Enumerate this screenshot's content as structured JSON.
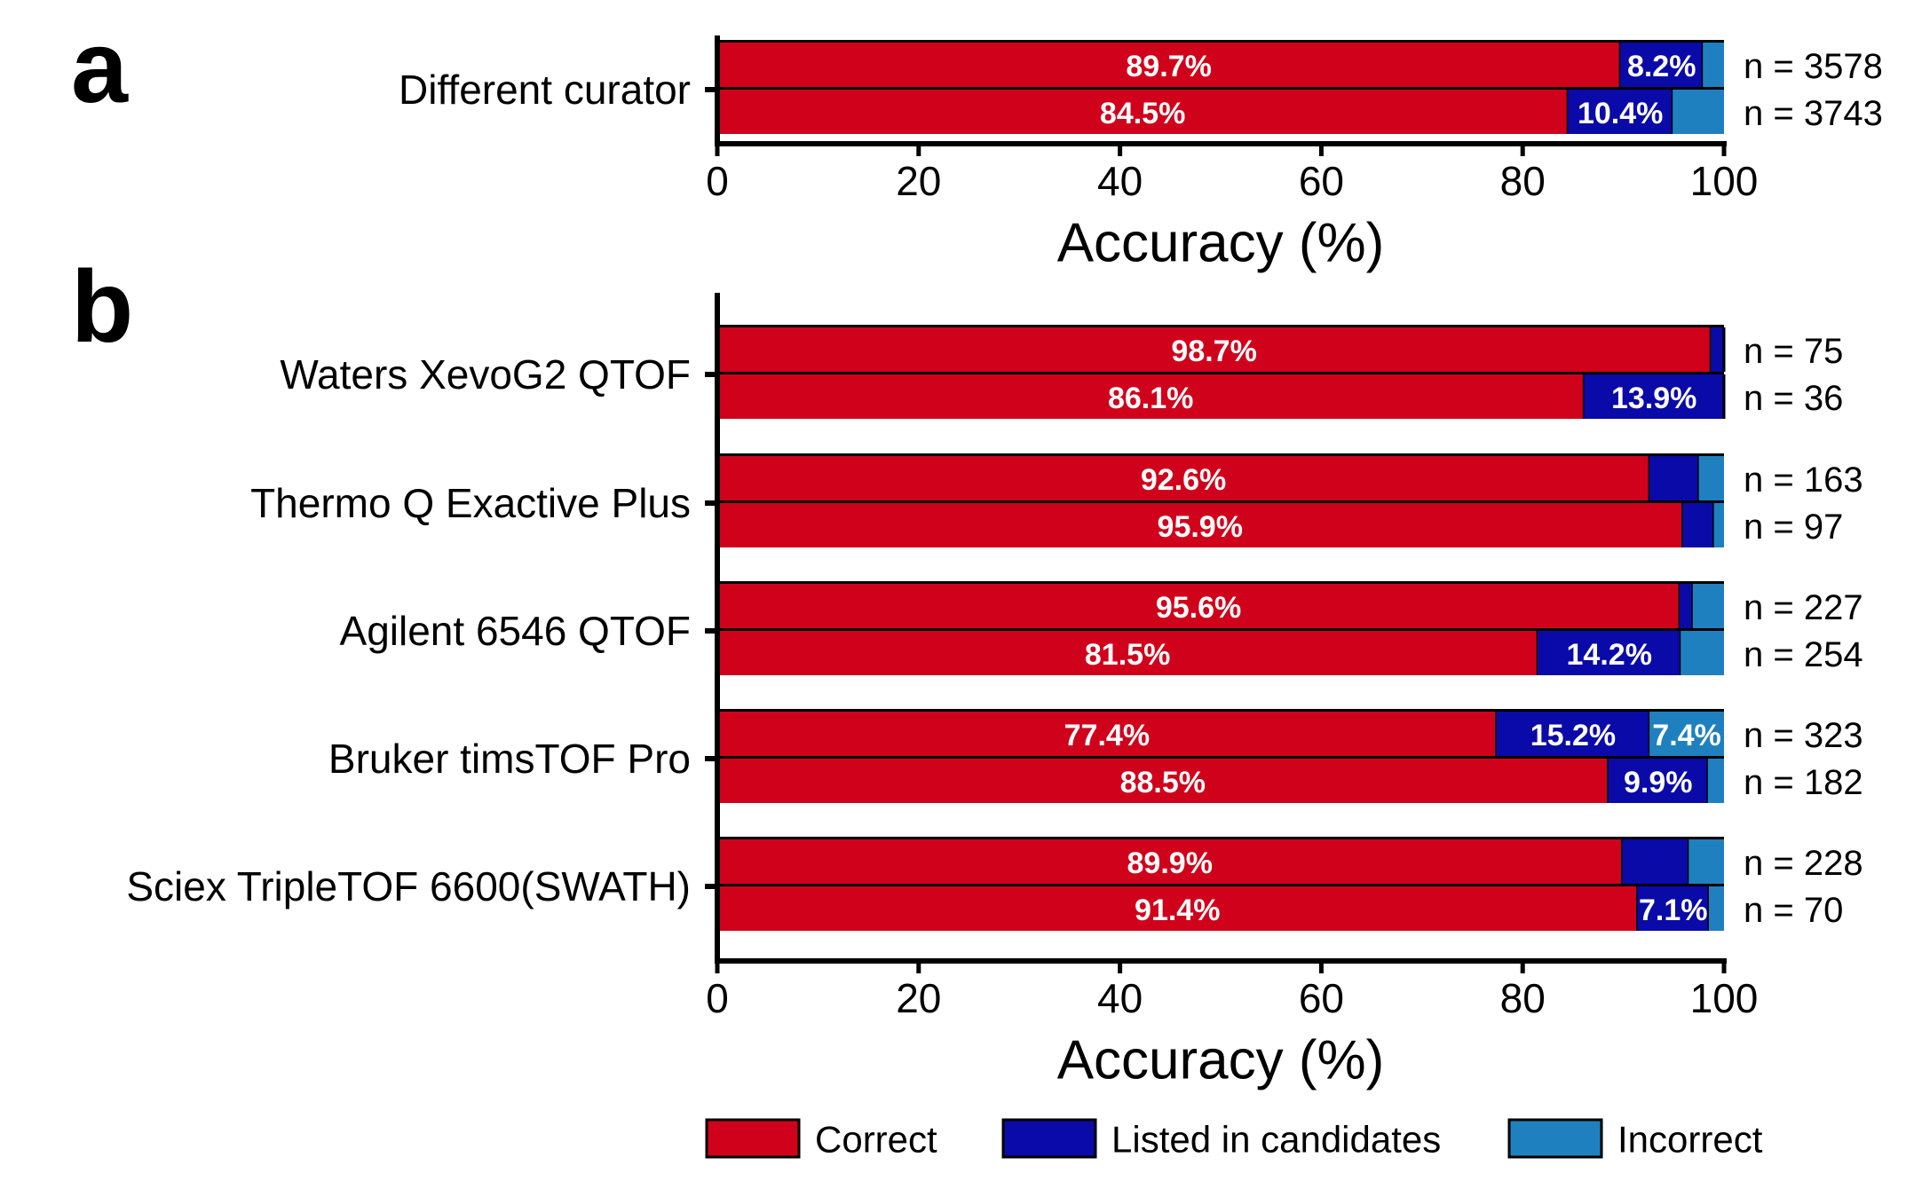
{
  "colors": {
    "correct": "#d0021b",
    "listed": "#0a0aa8",
    "incorrect": "#1f80bf",
    "axis": "#000000"
  },
  "chart_data": [
    {
      "panel": "a",
      "type": "bar",
      "orientation": "horizontal",
      "stacked": true,
      "xlabel": "Accuracy (%)",
      "xlim": [
        0,
        100
      ],
      "xticks": [
        "0",
        "20",
        "40",
        "60",
        "80",
        "100"
      ],
      "groups": [
        {
          "name": "Different curator",
          "bars": [
            {
              "correct": 89.7,
              "listed": 8.2,
              "incorrect": 2.1,
              "labels": {
                "correct": "89.7%",
                "listed": "8.2%",
                "incorrect": ""
              },
              "n": "n = 3578"
            },
            {
              "correct": 84.5,
              "listed": 10.4,
              "incorrect": 5.1,
              "labels": {
                "correct": "84.5%",
                "listed": "10.4%",
                "incorrect": ""
              },
              "n": "n = 3743"
            }
          ]
        }
      ]
    },
    {
      "panel": "b",
      "type": "bar",
      "orientation": "horizontal",
      "stacked": true,
      "xlabel": "Accuracy (%)",
      "xlim": [
        0,
        100
      ],
      "xticks": [
        "0",
        "20",
        "40",
        "60",
        "80",
        "100"
      ],
      "groups": [
        {
          "name": "Waters XevoG2 QTOF",
          "bars": [
            {
              "correct": 98.7,
              "listed": 1.3,
              "incorrect": 0.0,
              "labels": {
                "correct": "98.7%",
                "listed": "",
                "incorrect": ""
              },
              "n": "n = 75"
            },
            {
              "correct": 86.1,
              "listed": 13.9,
              "incorrect": 0.0,
              "labels": {
                "correct": "86.1%",
                "listed": "13.9%",
                "incorrect": ""
              },
              "n": "n = 36"
            }
          ]
        },
        {
          "name": "Thermo Q Exactive Plus",
          "bars": [
            {
              "correct": 92.6,
              "listed": 4.9,
              "incorrect": 2.5,
              "labels": {
                "correct": "92.6%",
                "listed": "",
                "incorrect": ""
              },
              "n": "n = 163"
            },
            {
              "correct": 95.9,
              "listed": 3.1,
              "incorrect": 1.0,
              "labels": {
                "correct": "95.9%",
                "listed": "",
                "incorrect": ""
              },
              "n": "n = 97"
            }
          ]
        },
        {
          "name": "Agilent 6546 QTOF",
          "bars": [
            {
              "correct": 95.6,
              "listed": 1.3,
              "incorrect": 3.1,
              "labels": {
                "correct": "95.6%",
                "listed": "",
                "incorrect": ""
              },
              "n": "n = 227"
            },
            {
              "correct": 81.5,
              "listed": 14.2,
              "incorrect": 4.3,
              "labels": {
                "correct": "81.5%",
                "listed": "14.2%",
                "incorrect": ""
              },
              "n": "n = 254"
            }
          ]
        },
        {
          "name": "Bruker timsTOF Pro",
          "bars": [
            {
              "correct": 77.4,
              "listed": 15.2,
              "incorrect": 7.4,
              "labels": {
                "correct": "77.4%",
                "listed": "15.2%",
                "incorrect": "7.4%"
              },
              "n": "n = 323"
            },
            {
              "correct": 88.5,
              "listed": 9.9,
              "incorrect": 1.6,
              "labels": {
                "correct": "88.5%",
                "listed": "9.9%",
                "incorrect": ""
              },
              "n": "n = 182"
            }
          ]
        },
        {
          "name": "Sciex TripleTOF 6600(SWATH)",
          "bars": [
            {
              "correct": 89.9,
              "listed": 6.6,
              "incorrect": 3.5,
              "labels": {
                "correct": "89.9%",
                "listed": "",
                "incorrect": ""
              },
              "n": "n = 228"
            },
            {
              "correct": 91.4,
              "listed": 7.1,
              "incorrect": 1.5,
              "labels": {
                "correct": "91.4%",
                "listed": "7.1%",
                "incorrect": ""
              },
              "n": "n = 70"
            }
          ]
        }
      ]
    }
  ],
  "legend": [
    {
      "key": "correct",
      "label": "Correct"
    },
    {
      "key": "listed",
      "label": "Listed in candidates"
    },
    {
      "key": "incorrect",
      "label": "Incorrect"
    }
  ]
}
